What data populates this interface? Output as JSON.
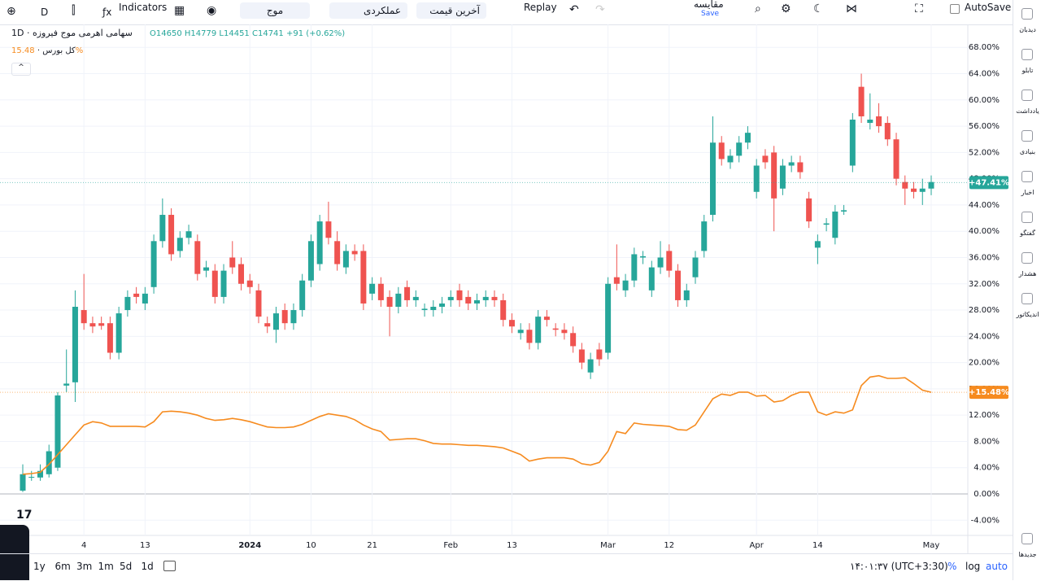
{
  "toolbar": {
    "interval": "D",
    "indicators": "Indicators",
    "symbol_search": "موج",
    "mode": "عملکردی",
    "price_type": "آخرین قیمت",
    "replay": "Replay",
    "compare": "مقایسه",
    "save": "Save",
    "autosave": "AutoSave"
  },
  "sidebar": [
    "دیدبان",
    "تابلو",
    "یادداشت",
    "بنیادی",
    "اخبار",
    "گفتگو",
    "هشدار",
    "اندیکاتور",
    "جدیدها"
  ],
  "bottom": {
    "ranges": [
      "1y",
      "6m",
      "3m",
      "1m",
      "5d",
      "1d"
    ],
    "clock": "۱۴:۰۱:۳۷ (UTC+3:30)",
    "percent": "%",
    "log": "log",
    "auto": "auto"
  },
  "chart_data": {
    "type": "candlestick",
    "header": {
      "symbol": "سهامی اهرمی موج فیروزه · 1D",
      "o": "O14650",
      "h": "H14779",
      "l": "L14451",
      "c": "C14741",
      "change": "+91 (+0.62%)"
    },
    "categories": [
      null,
      null,
      null,
      null,
      null,
      null,
      null,
      "4",
      null,
      null,
      null,
      null,
      null,
      null,
      "13",
      null,
      null,
      null,
      null,
      null,
      null,
      null,
      null,
      null,
      null,
      null,
      "2024",
      null,
      null,
      null,
      null,
      null,
      null,
      "10",
      null,
      null,
      null,
      null,
      null,
      null,
      "21",
      null,
      null,
      null,
      null,
      null,
      null,
      null,
      null,
      "Feb",
      null,
      null,
      null,
      null,
      null,
      null,
      "13",
      null,
      null,
      null,
      null,
      null,
      null,
      null,
      null,
      null,
      null,
      "Mar",
      null,
      null,
      null,
      null,
      null,
      null,
      "12",
      null,
      null,
      null,
      null,
      null,
      null,
      null,
      null,
      null,
      "Apr",
      null,
      null,
      null,
      null,
      null,
      null,
      "14",
      null,
      null,
      null,
      null,
      null,
      null,
      null,
      null,
      null,
      null,
      null,
      null,
      "May"
    ],
    "candles": {
      "up_color": "#26a69a",
      "down_color": "#ef5350",
      "open": [
        0.5,
        2.5,
        2.5,
        3,
        4,
        16.5,
        17,
        28,
        26,
        26,
        26,
        21.5,
        28,
        30.5,
        29,
        31.5,
        38.5,
        42.5,
        37,
        39,
        38.5,
        34,
        34,
        30,
        36,
        35,
        32.5,
        31,
        26,
        25,
        28,
        26,
        28,
        32.5,
        35,
        41.5,
        38.5,
        34.5,
        37,
        37,
        30.5,
        32,
        30,
        28.5,
        31.5,
        29.5,
        28,
        28,
        28.5,
        29.5,
        31,
        30,
        29,
        29.5,
        30,
        29.5,
        26.5,
        24.5,
        25,
        23,
        27,
        25.2,
        25,
        24.5,
        22,
        18.5,
        22,
        21.5,
        33,
        31,
        32.5,
        36,
        31,
        34.5,
        37,
        34,
        29.5,
        33,
        37,
        42.5,
        53.5,
        50.5,
        51.5,
        53.5,
        46,
        51.5,
        52,
        46.5,
        50,
        50.5,
        45,
        37.5,
        41,
        39,
        43,
        50,
        62,
        56.5,
        57.5,
        56.5,
        54,
        47.5,
        46.5,
        46,
        46.5
      ],
      "high": [
        4.5,
        3.5,
        4.5,
        7.5,
        15.5,
        22,
        31,
        33.5,
        27,
        27,
        27,
        28.5,
        31,
        31.5,
        31.5,
        39.5,
        45,
        43.5,
        40,
        41,
        39.5,
        35.5,
        35,
        35,
        38.5,
        36,
        33.5,
        32,
        27,
        28.5,
        29,
        29,
        33.5,
        39.5,
        42.5,
        44.5,
        40,
        38,
        38,
        38,
        33,
        33,
        31,
        31.5,
        32.5,
        31,
        29,
        29.5,
        30,
        31,
        32,
        31,
        30.5,
        31,
        31,
        30.5,
        27.5,
        26,
        26,
        28,
        28,
        26,
        26,
        25.5,
        23,
        21.5,
        23,
        33,
        38,
        33.5,
        37.5,
        37,
        35.5,
        38.5,
        38,
        35,
        32,
        37,
        42.5,
        57.5,
        54.5,
        52.5,
        54.5,
        56,
        51,
        52.5,
        53,
        51,
        51.5,
        51.5,
        46,
        39.5,
        42,
        44,
        44,
        58,
        64,
        61,
        59.5,
        57.5,
        55,
        48.5,
        47.5,
        48,
        48.5
      ],
      "low": [
        0.3,
        2,
        2,
        2.5,
        3.5,
        15.5,
        14,
        25,
        24.5,
        25,
        20.5,
        20.5,
        27,
        29,
        28,
        30.5,
        37.5,
        35.5,
        36,
        38,
        32.5,
        33,
        29,
        29,
        33.5,
        31,
        30.5,
        26,
        24.5,
        23,
        25,
        25,
        27,
        31.5,
        34,
        38,
        34,
        33.5,
        35.5,
        28,
        29.5,
        28.5,
        24,
        27.5,
        28.5,
        28.5,
        27,
        27,
        27.5,
        28.5,
        28.5,
        28,
        28,
        28.5,
        28.5,
        25.5,
        24.5,
        23.5,
        22,
        22,
        25.5,
        24,
        23.5,
        21.5,
        19,
        17.5,
        19.5,
        20.5,
        31,
        30,
        31.5,
        35,
        30,
        33.5,
        33,
        28.5,
        28.5,
        32,
        36,
        41.5,
        50,
        49.5,
        50.5,
        52.5,
        45,
        49.5,
        40,
        45.5,
        49,
        48,
        40.5,
        35,
        40,
        38,
        42.5,
        49,
        56.5,
        55.5,
        55,
        53,
        47,
        44,
        45,
        44,
        45.5
      ],
      "close": [
        3,
        2.6,
        3.5,
        6.5,
        15,
        16.8,
        28.5,
        26,
        25.5,
        25.6,
        21.5,
        27.5,
        30,
        30,
        30.5,
        38.5,
        42.5,
        36.5,
        39,
        40,
        33.5,
        34.5,
        30,
        34,
        34.5,
        32,
        31.5,
        27,
        25.5,
        27.5,
        26,
        28,
        32.5,
        38.5,
        41.5,
        39,
        35,
        37,
        36.5,
        29,
        32,
        29.5,
        28.5,
        30.5,
        29.5,
        30,
        28.2,
        28.5,
        29,
        30,
        29.5,
        29,
        29.5,
        30,
        29.5,
        26.5,
        25.5,
        25,
        23,
        27,
        26.5,
        25,
        24.5,
        22.5,
        20,
        20.5,
        20.5,
        32,
        32,
        32.5,
        36.5,
        36.2,
        34.5,
        36,
        34,
        29.5,
        31,
        36,
        41.5,
        53.5,
        51,
        51.5,
        53.5,
        55,
        50,
        50.5,
        45,
        50,
        50.5,
        49,
        41.5,
        38.5,
        41.2,
        43,
        43.2,
        57,
        57.5,
        57,
        56,
        54,
        48,
        46.5,
        46,
        46.5,
        47.5
      ],
      "last": {
        "value": 47.41,
        "label": "+47.41%"
      }
    },
    "series": [
      {
        "name": "کل بورس",
        "color": "#f68b1f",
        "legend_value": "15.48%",
        "last": {
          "value": 15.48,
          "label": "+15.48%"
        },
        "values": [
          3,
          3.1,
          3.3,
          4.5,
          6,
          7.5,
          9,
          10.5,
          11,
          10.8,
          10.3,
          10.3,
          10.3,
          10.3,
          10.2,
          11,
          12.5,
          12.6,
          12.5,
          12.3,
          12,
          11.5,
          11.2,
          11.3,
          11.5,
          11.3,
          11,
          10.6,
          10.2,
          10.1,
          10.1,
          10.2,
          10.6,
          11.2,
          11.8,
          12.2,
          12,
          11.8,
          11.3,
          10.5,
          9.9,
          9.5,
          8.2,
          8.3,
          8.4,
          8.4,
          8.1,
          7.7,
          7.6,
          7.6,
          7.5,
          7.4,
          7.4,
          7.3,
          7.2,
          7,
          6.5,
          6,
          5,
          5.3,
          5.5,
          5.5,
          5.5,
          5.3,
          4.6,
          4.4,
          4.8,
          6.5,
          9.5,
          9.2,
          10.8,
          10.6,
          10.5,
          10.4,
          10.3,
          9.8,
          9.7,
          10.5,
          12.5,
          14.5,
          15.2,
          15,
          15.5,
          15.5,
          14.9,
          15,
          14,
          14.2,
          15,
          15.5,
          15.5,
          12.5,
          12,
          12.5,
          12.3,
          12.8,
          16.5,
          17.8,
          18,
          17.6,
          17.6,
          17.7,
          16.8,
          15.8,
          15.48
        ]
      }
    ],
    "ylim": [
      -6.32,
      71.5
    ],
    "yticks": [
      {
        "value": -4,
        "label": "-4.00%"
      },
      {
        "value": 0,
        "label": "0.00%"
      },
      {
        "value": 4,
        "label": "4.00%"
      },
      {
        "value": 8,
        "label": "8.00%"
      },
      {
        "value": 12,
        "label": "12.00%"
      },
      {
        "value": 16,
        "label": "16.00%"
      },
      {
        "value": 20,
        "label": "20.00%"
      },
      {
        "value": 24,
        "label": "24.00%"
      },
      {
        "value": 28,
        "label": "28.00%"
      },
      {
        "value": 32,
        "label": "32.00%"
      },
      {
        "value": 36,
        "label": "36.00%"
      },
      {
        "value": 40,
        "label": "40.00%"
      },
      {
        "value": 44,
        "label": "44.00%"
      },
      {
        "value": 48,
        "label": "48.00%"
      },
      {
        "value": 52,
        "label": "52.00%"
      },
      {
        "value": 56,
        "label": "56.00%"
      },
      {
        "value": 60,
        "label": "60.00%"
      },
      {
        "value": 64,
        "label": "64.00%"
      },
      {
        "value": 68,
        "label": "68.00%"
      }
    ],
    "grid": true
  }
}
